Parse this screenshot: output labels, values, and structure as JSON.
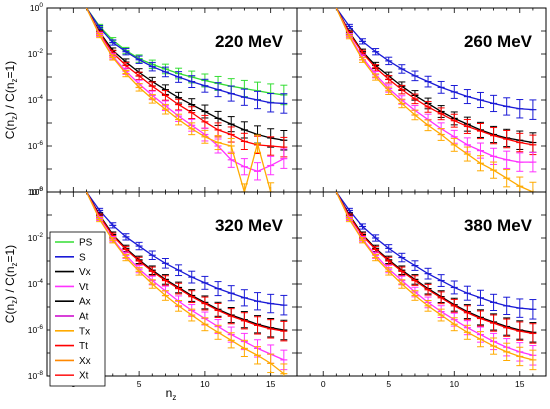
{
  "chart_data": {
    "type": "line",
    "ylabel_parts": {
      "C1": "C(n",
      "sub1": "z",
      "mid": ") / C(n",
      "sub2": "z",
      "tail": "=1)"
    },
    "xlabel_parts": {
      "main": "n",
      "sub": "z"
    },
    "x_range": [
      -2,
      17
    ],
    "x_ticks": [
      0,
      5,
      10,
      15
    ],
    "y_range_exp": [
      -8,
      0
    ],
    "y_tick_exps": [
      0,
      -2,
      -4,
      -6,
      -8
    ],
    "log_y": true,
    "grid": false,
    "legend_placement": "inside lower-left panel, left",
    "legend": [
      {
        "name": "PS",
        "color": "#33dd33"
      },
      {
        "name": "S",
        "color": "#1a1ad6"
      },
      {
        "name": "Vx",
        "color": "#000000"
      },
      {
        "name": "Vt",
        "color": "#ff33ff"
      },
      {
        "name": "Ax",
        "color": "#000000"
      },
      {
        "name": "At",
        "color": "#cc00cc"
      },
      {
        "name": "Tx",
        "color": "#ffaa00"
      },
      {
        "name": "Tt",
        "color": "#ff0000"
      },
      {
        "name": "Xx",
        "color": "#ff8800"
      },
      {
        "name": "Xt",
        "color": "#ff2222"
      }
    ],
    "panels": [
      {
        "title": "220 MeV",
        "series": [
          {
            "name": "PS",
            "color": "#33dd33",
            "x": [
              1,
              2,
              3,
              4,
              5,
              6,
              7,
              8,
              9,
              10,
              11,
              12,
              13,
              14,
              15,
              16
            ],
            "y_exp": [
              0,
              -0.8,
              -1.4,
              -1.85,
              -2.2,
              -2.45,
              -2.65,
              -2.85,
              -3.0,
              -3.15,
              -3.28,
              -3.4,
              -3.5,
              -3.6,
              -3.7,
              -3.78
            ]
          },
          {
            "name": "S",
            "color": "#1a1ad6",
            "x": [
              1,
              2,
              3,
              4,
              5,
              6,
              7,
              8,
              9,
              10,
              11,
              12,
              13,
              14,
              15,
              16
            ],
            "y_exp": [
              0,
              -0.85,
              -1.5,
              -1.9,
              -2.25,
              -2.55,
              -2.78,
              -3.0,
              -3.2,
              -3.38,
              -3.55,
              -3.72,
              -3.88,
              -4.0,
              -4.12,
              -4.15
            ]
          },
          {
            "name": "Vx",
            "color": "#000000",
            "x": [
              1,
              2,
              3,
              4,
              5,
              6,
              7,
              8,
              9,
              10,
              11,
              12,
              13,
              14,
              15,
              16
            ],
            "y_exp": [
              0,
              -1.05,
              -1.85,
              -2.35,
              -2.8,
              -3.2,
              -3.55,
              -3.9,
              -4.2,
              -4.5,
              -4.8,
              -5.05,
              -5.3,
              -5.5,
              -5.65,
              -5.75
            ]
          },
          {
            "name": "Tt",
            "color": "#ff0000",
            "x": [
              1,
              2,
              3,
              4,
              5,
              6,
              7,
              8,
              9,
              10,
              11,
              12,
              13,
              14,
              15,
              16
            ],
            "y_exp": [
              0,
              -1.1,
              -1.95,
              -2.5,
              -2.95,
              -3.4,
              -3.8,
              -4.2,
              -4.55,
              -4.95,
              -5.3,
              -5.5,
              -5.8,
              -5.95,
              -6.0,
              -6.05
            ]
          },
          {
            "name": "Vt",
            "color": "#ff33ff",
            "x": [
              1,
              2,
              3,
              4,
              5,
              6,
              7,
              8,
              9,
              10,
              11,
              12,
              13,
              14,
              15,
              16
            ],
            "y_exp": [
              0,
              -1.15,
              -2.1,
              -2.75,
              -3.3,
              -3.8,
              -4.25,
              -4.7,
              -5.1,
              -5.5,
              -6.0,
              -6.6,
              -6.9,
              -7.1,
              -6.85,
              -6.55
            ]
          },
          {
            "name": "Tx",
            "color": "#ffaa00",
            "x": [
              1,
              2,
              3,
              4,
              5,
              6,
              7,
              8,
              9,
              10,
              11,
              12,
              13,
              14,
              15
            ],
            "y_exp": [
              0,
              -1.2,
              -2.15,
              -2.85,
              -3.45,
              -3.95,
              -4.4,
              -4.85,
              -5.25,
              -5.6,
              -5.85,
              -6.0,
              -8.0,
              -5.9,
              -8.0
            ]
          }
        ]
      },
      {
        "title": "260 MeV",
        "series": [
          {
            "name": "S",
            "color": "#1a1ad6",
            "x": [
              1,
              2,
              3,
              4,
              5,
              6,
              7,
              8,
              9,
              10,
              11,
              12,
              13,
              14,
              15,
              16
            ],
            "y_exp": [
              0,
              -0.8,
              -1.45,
              -1.9,
              -2.3,
              -2.65,
              -2.95,
              -3.2,
              -3.45,
              -3.65,
              -3.85,
              -4.0,
              -4.15,
              -4.28,
              -4.38,
              -4.42
            ]
          },
          {
            "name": "Vx",
            "color": "#000000",
            "x": [
              1,
              2,
              3,
              4,
              5,
              6,
              7,
              8,
              9,
              10,
              11,
              12,
              13,
              14,
              15,
              16
            ],
            "y_exp": [
              0,
              -1.05,
              -1.9,
              -2.5,
              -2.95,
              -3.4,
              -3.8,
              -4.15,
              -4.5,
              -4.8,
              -5.05,
              -5.3,
              -5.5,
              -5.65,
              -5.75,
              -5.85
            ]
          },
          {
            "name": "Tt",
            "color": "#ff0000",
            "x": [
              1,
              2,
              3,
              4,
              5,
              6,
              7,
              8,
              9,
              10,
              11,
              12,
              13,
              14,
              15,
              16
            ],
            "y_exp": [
              0,
              -1.1,
              -1.95,
              -2.6,
              -3.1,
              -3.55,
              -3.95,
              -4.3,
              -4.6,
              -4.9,
              -5.15,
              -5.35,
              -5.55,
              -5.7,
              -5.85,
              -5.95
            ]
          },
          {
            "name": "Vt",
            "color": "#ff33ff",
            "x": [
              1,
              2,
              3,
              4,
              5,
              6,
              7,
              8,
              9,
              10,
              11,
              12,
              13,
              14,
              15,
              16
            ],
            "y_exp": [
              0,
              -1.2,
              -2.15,
              -2.9,
              -3.5,
              -4.0,
              -4.45,
              -4.85,
              -5.25,
              -5.6,
              -5.95,
              -6.2,
              -6.45,
              -6.6,
              -6.7,
              -6.7
            ]
          },
          {
            "name": "Tx",
            "color": "#ffaa00",
            "x": [
              1,
              2,
              3,
              4,
              5,
              6,
              7,
              8,
              9,
              10,
              11,
              12,
              13,
              14,
              15,
              16
            ],
            "y_exp": [
              0,
              -1.25,
              -2.25,
              -3.0,
              -3.6,
              -4.15,
              -4.65,
              -5.1,
              -5.5,
              -5.95,
              -6.35,
              -6.75,
              -7.05,
              -7.4,
              -7.75,
              -8.0
            ]
          }
        ]
      },
      {
        "title": "320 MeV",
        "series": [
          {
            "name": "S",
            "color": "#1a1ad6",
            "x": [
              1,
              2,
              3,
              4,
              5,
              6,
              7,
              8,
              9,
              10,
              11,
              12,
              13,
              14,
              15,
              16
            ],
            "y_exp": [
              0,
              -0.8,
              -1.45,
              -1.95,
              -2.35,
              -2.75,
              -3.1,
              -3.4,
              -3.7,
              -3.95,
              -4.2,
              -4.4,
              -4.6,
              -4.75,
              -4.85,
              -4.92
            ]
          },
          {
            "name": "Vx",
            "color": "#000000",
            "x": [
              1,
              2,
              3,
              4,
              5,
              6,
              7,
              8,
              9,
              10,
              11,
              12,
              13,
              14,
              15,
              16
            ],
            "y_exp": [
              0,
              -1.0,
              -1.85,
              -2.45,
              -2.95,
              -3.4,
              -3.8,
              -4.15,
              -4.5,
              -4.8,
              -5.1,
              -5.35,
              -5.55,
              -5.75,
              -5.9,
              -6.0
            ]
          },
          {
            "name": "Tt",
            "color": "#ff0000",
            "x": [
              1,
              2,
              3,
              4,
              5,
              6,
              7,
              8,
              9,
              10,
              11,
              12,
              13,
              14,
              15,
              16
            ],
            "y_exp": [
              0,
              -1.05,
              -1.9,
              -2.5,
              -3.0,
              -3.45,
              -3.85,
              -4.2,
              -4.55,
              -4.85,
              -5.15,
              -5.4,
              -5.6,
              -5.8,
              -5.95,
              -6.05
            ]
          },
          {
            "name": "Vt",
            "color": "#ff33ff",
            "x": [
              1,
              2,
              3,
              4,
              5,
              6,
              7,
              8,
              9,
              10,
              11,
              12,
              13,
              14,
              15,
              16
            ],
            "y_exp": [
              0,
              -1.15,
              -2.05,
              -2.75,
              -3.35,
              -3.85,
              -4.3,
              -4.75,
              -5.15,
              -5.5,
              -5.85,
              -6.2,
              -6.5,
              -6.8,
              -7.05,
              -7.3
            ]
          },
          {
            "name": "Tx",
            "color": "#ffaa00",
            "x": [
              1,
              2,
              3,
              4,
              5,
              6,
              7,
              8,
              9,
              10,
              11,
              12,
              13,
              14,
              15,
              16
            ],
            "y_exp": [
              0,
              -1.2,
              -2.1,
              -2.85,
              -3.45,
              -4.0,
              -4.5,
              -4.95,
              -5.35,
              -5.75,
              -6.1,
              -6.45,
              -6.8,
              -7.1,
              -7.45,
              -7.9
            ]
          }
        ]
      },
      {
        "title": "380 MeV",
        "series": [
          {
            "name": "S",
            "color": "#1a1ad6",
            "x": [
              1,
              2,
              3,
              4,
              5,
              6,
              7,
              8,
              9,
              10,
              11,
              12,
              13,
              14,
              15,
              16
            ],
            "y_exp": [
              0,
              -0.8,
              -1.5,
              -2.0,
              -2.45,
              -2.85,
              -3.2,
              -3.55,
              -3.85,
              -4.15,
              -4.4,
              -4.6,
              -4.8,
              -4.95,
              -5.05,
              -5.1
            ]
          },
          {
            "name": "Vx",
            "color": "#000000",
            "x": [
              1,
              2,
              3,
              4,
              5,
              6,
              7,
              8,
              9,
              10,
              11,
              12,
              13,
              14,
              15,
              16
            ],
            "y_exp": [
              0,
              -1.0,
              -1.85,
              -2.45,
              -2.95,
              -3.4,
              -3.8,
              -4.2,
              -4.55,
              -4.9,
              -5.2,
              -5.45,
              -5.65,
              -5.85,
              -6.0,
              -6.1
            ]
          },
          {
            "name": "Tt",
            "color": "#ff0000",
            "x": [
              1,
              2,
              3,
              4,
              5,
              6,
              7,
              8,
              9,
              10,
              11,
              12,
              13,
              14,
              15,
              16
            ],
            "y_exp": [
              0,
              -1.05,
              -1.9,
              -2.5,
              -3.0,
              -3.45,
              -3.85,
              -4.25,
              -4.6,
              -4.95,
              -5.25,
              -5.5,
              -5.7,
              -5.9,
              -6.05,
              -6.15
            ]
          },
          {
            "name": "Vt",
            "color": "#ff33ff",
            "x": [
              1,
              2,
              3,
              4,
              5,
              6,
              7,
              8,
              9,
              10,
              11,
              12,
              13,
              14,
              15,
              16
            ],
            "y_exp": [
              0,
              -1.15,
              -2.05,
              -2.75,
              -3.35,
              -3.85,
              -4.35,
              -4.8,
              -5.2,
              -5.55,
              -5.9,
              -6.2,
              -6.5,
              -6.75,
              -6.95,
              -7.1
            ]
          },
          {
            "name": "Tx",
            "color": "#ffaa00",
            "x": [
              1,
              2,
              3,
              4,
              5,
              6,
              7,
              8,
              9,
              10,
              11,
              12,
              13,
              14,
              15,
              16
            ],
            "y_exp": [
              0,
              -1.2,
              -2.1,
              -2.85,
              -3.45,
              -4.0,
              -4.5,
              -4.95,
              -5.35,
              -5.75,
              -6.1,
              -6.4,
              -6.7,
              -6.95,
              -7.15,
              -7.3
            ]
          }
        ]
      }
    ]
  }
}
